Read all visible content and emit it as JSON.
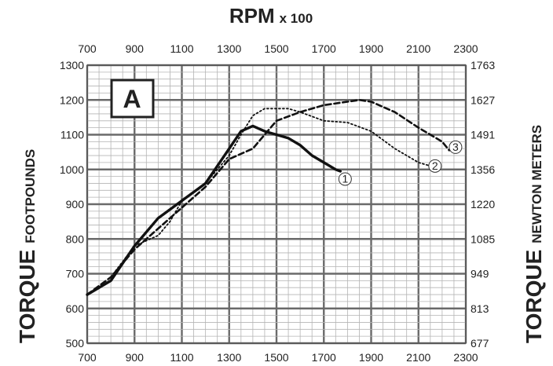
{
  "chart_data": {
    "type": "line",
    "title": "RPM",
    "title_suffix": "x 100",
    "panel_label": "A",
    "left_axis": {
      "label_main": "TORQUE",
      "label_sub": "FOOTPOUNDS",
      "range": [
        500,
        1300
      ],
      "ticks": [
        "1300",
        "1200",
        "1100",
        "1000",
        "900",
        "800",
        "700",
        "600",
        "500"
      ]
    },
    "right_axis": {
      "label_main": "TORQUE",
      "label_sub": "NEWTON METERS",
      "range": [
        677,
        1763
      ],
      "ticks": [
        "1763",
        "1627",
        "1491",
        "1356",
        "1220",
        "1085",
        "949",
        "813",
        "677"
      ]
    },
    "x_axis": {
      "range": [
        700,
        2300
      ],
      "ticks": [
        "700",
        "900",
        "1100",
        "1300",
        "1500",
        "1700",
        "1900",
        "2100",
        "2300"
      ]
    },
    "grid": true,
    "series": [
      {
        "marker": "1",
        "style": "solid",
        "x": [
          700,
          800,
          900,
          1000,
          1100,
          1200,
          1300,
          1350,
          1400,
          1450,
          1500,
          1550,
          1600,
          1650,
          1700,
          1750,
          1770
        ],
        "y": [
          640,
          680,
          780,
          860,
          910,
          960,
          1060,
          1110,
          1125,
          1110,
          1100,
          1090,
          1070,
          1040,
          1020,
          1000,
          995
        ]
      },
      {
        "marker": "2",
        "style": "dotted",
        "x": [
          800,
          900,
          1000,
          1050,
          1100,
          1200,
          1300,
          1350,
          1400,
          1450,
          1500,
          1550,
          1600,
          1700,
          1800,
          1900,
          2000,
          2100,
          2150
        ],
        "y": [
          690,
          780,
          810,
          850,
          910,
          960,
          1040,
          1100,
          1155,
          1175,
          1175,
          1175,
          1165,
          1140,
          1135,
          1110,
          1060,
          1020,
          1010
        ]
      },
      {
        "marker": "3",
        "style": "dashed",
        "x": [
          700,
          800,
          900,
          1000,
          1100,
          1200,
          1300,
          1400,
          1450,
          1500,
          1600,
          1700,
          1800,
          1850,
          1900,
          2000,
          2100,
          2200,
          2230
        ],
        "y": [
          640,
          690,
          770,
          830,
          890,
          950,
          1030,
          1060,
          1100,
          1140,
          1165,
          1185,
          1195,
          1200,
          1195,
          1165,
          1120,
          1080,
          1055
        ]
      }
    ]
  }
}
